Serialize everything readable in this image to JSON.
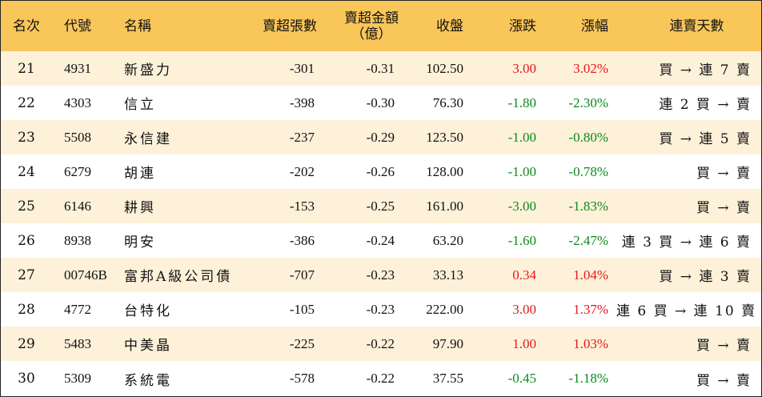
{
  "colors": {
    "header_bg": "#f9c65a",
    "row_alt_bg": "#fdf1d9",
    "up": "#e8161a",
    "down": "#0c8a1d"
  },
  "headers": {
    "rank": "名次",
    "code": "代號",
    "name": "名稱",
    "volume": "賣超張數",
    "amount_line1": "賣超金額",
    "amount_line2": "（億）",
    "close": "收盤",
    "change": "漲跌",
    "pct": "漲幅",
    "streak": "連賣天數"
  },
  "rows": [
    {
      "rank": "21",
      "code": "4931",
      "name": "新盛力",
      "volume": "-301",
      "amount": "-0.31",
      "close": "102.50",
      "change": "3.00",
      "pct": "3.02%",
      "dir": "up",
      "streak": "買 → 連 7 賣"
    },
    {
      "rank": "22",
      "code": "4303",
      "name": "信立",
      "volume": "-398",
      "amount": "-0.30",
      "close": "76.30",
      "change": "-1.80",
      "pct": "-2.30%",
      "dir": "down",
      "streak": "連 2 買 → 賣"
    },
    {
      "rank": "23",
      "code": "5508",
      "name": "永信建",
      "volume": "-237",
      "amount": "-0.29",
      "close": "123.50",
      "change": "-1.00",
      "pct": "-0.80%",
      "dir": "down",
      "streak": "買 → 連 5 賣"
    },
    {
      "rank": "24",
      "code": "6279",
      "name": "胡連",
      "volume": "-202",
      "amount": "-0.26",
      "close": "128.00",
      "change": "-1.00",
      "pct": "-0.78%",
      "dir": "down",
      "streak": "買 → 賣"
    },
    {
      "rank": "25",
      "code": "6146",
      "name": "耕興",
      "volume": "-153",
      "amount": "-0.25",
      "close": "161.00",
      "change": "-3.00",
      "pct": "-1.83%",
      "dir": "down",
      "streak": "買 → 賣"
    },
    {
      "rank": "26",
      "code": "8938",
      "name": "明安",
      "volume": "-386",
      "amount": "-0.24",
      "close": "63.20",
      "change": "-1.60",
      "pct": "-2.47%",
      "dir": "down",
      "streak": "連 3 買 → 連 6 賣"
    },
    {
      "rank": "27",
      "code": "00746B",
      "name": "富邦A級公司債",
      "volume": "-707",
      "amount": "-0.23",
      "close": "33.13",
      "change": "0.34",
      "pct": "1.04%",
      "dir": "up",
      "streak": "買 → 連 3 賣"
    },
    {
      "rank": "28",
      "code": "4772",
      "name": "台特化",
      "volume": "-105",
      "amount": "-0.23",
      "close": "222.00",
      "change": "3.00",
      "pct": "1.37%",
      "dir": "up",
      "streak": "連 6 買 → 連 10 賣"
    },
    {
      "rank": "29",
      "code": "5483",
      "name": "中美晶",
      "volume": "-225",
      "amount": "-0.22",
      "close": "97.90",
      "change": "1.00",
      "pct": "1.03%",
      "dir": "up",
      "streak": "買 → 賣"
    },
    {
      "rank": "30",
      "code": "5309",
      "name": "系統電",
      "volume": "-578",
      "amount": "-0.22",
      "close": "37.55",
      "change": "-0.45",
      "pct": "-1.18%",
      "dir": "down",
      "streak": "買 → 賣"
    }
  ]
}
